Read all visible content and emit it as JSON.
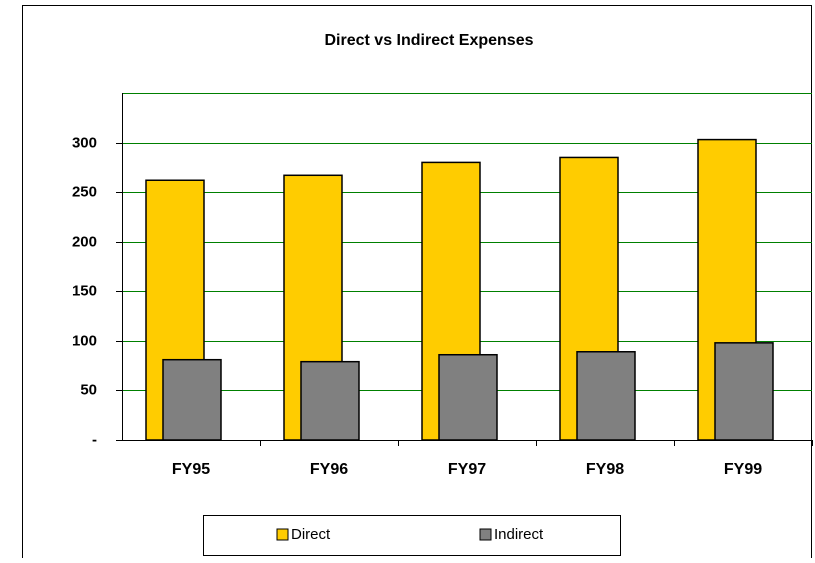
{
  "chart_data": {
    "type": "bar",
    "title": "Direct vs Indirect Expenses",
    "categories": [
      "FY95",
      "FY96",
      "FY97",
      "FY98",
      "FY99"
    ],
    "series": [
      {
        "name": "Direct",
        "color": "#ffcc00",
        "values": [
          262,
          267,
          280,
          285,
          303
        ]
      },
      {
        "name": "Indirect",
        "color": "#808080",
        "values": [
          81,
          79,
          86,
          89,
          98
        ]
      }
    ],
    "ylim": [
      0,
      350
    ],
    "yticks": [
      {
        "value": 0,
        "label": "-"
      },
      50,
      100,
      150,
      200,
      250,
      300
    ],
    "grid": true,
    "grid_color": "#008000",
    "legend": "bottom"
  }
}
